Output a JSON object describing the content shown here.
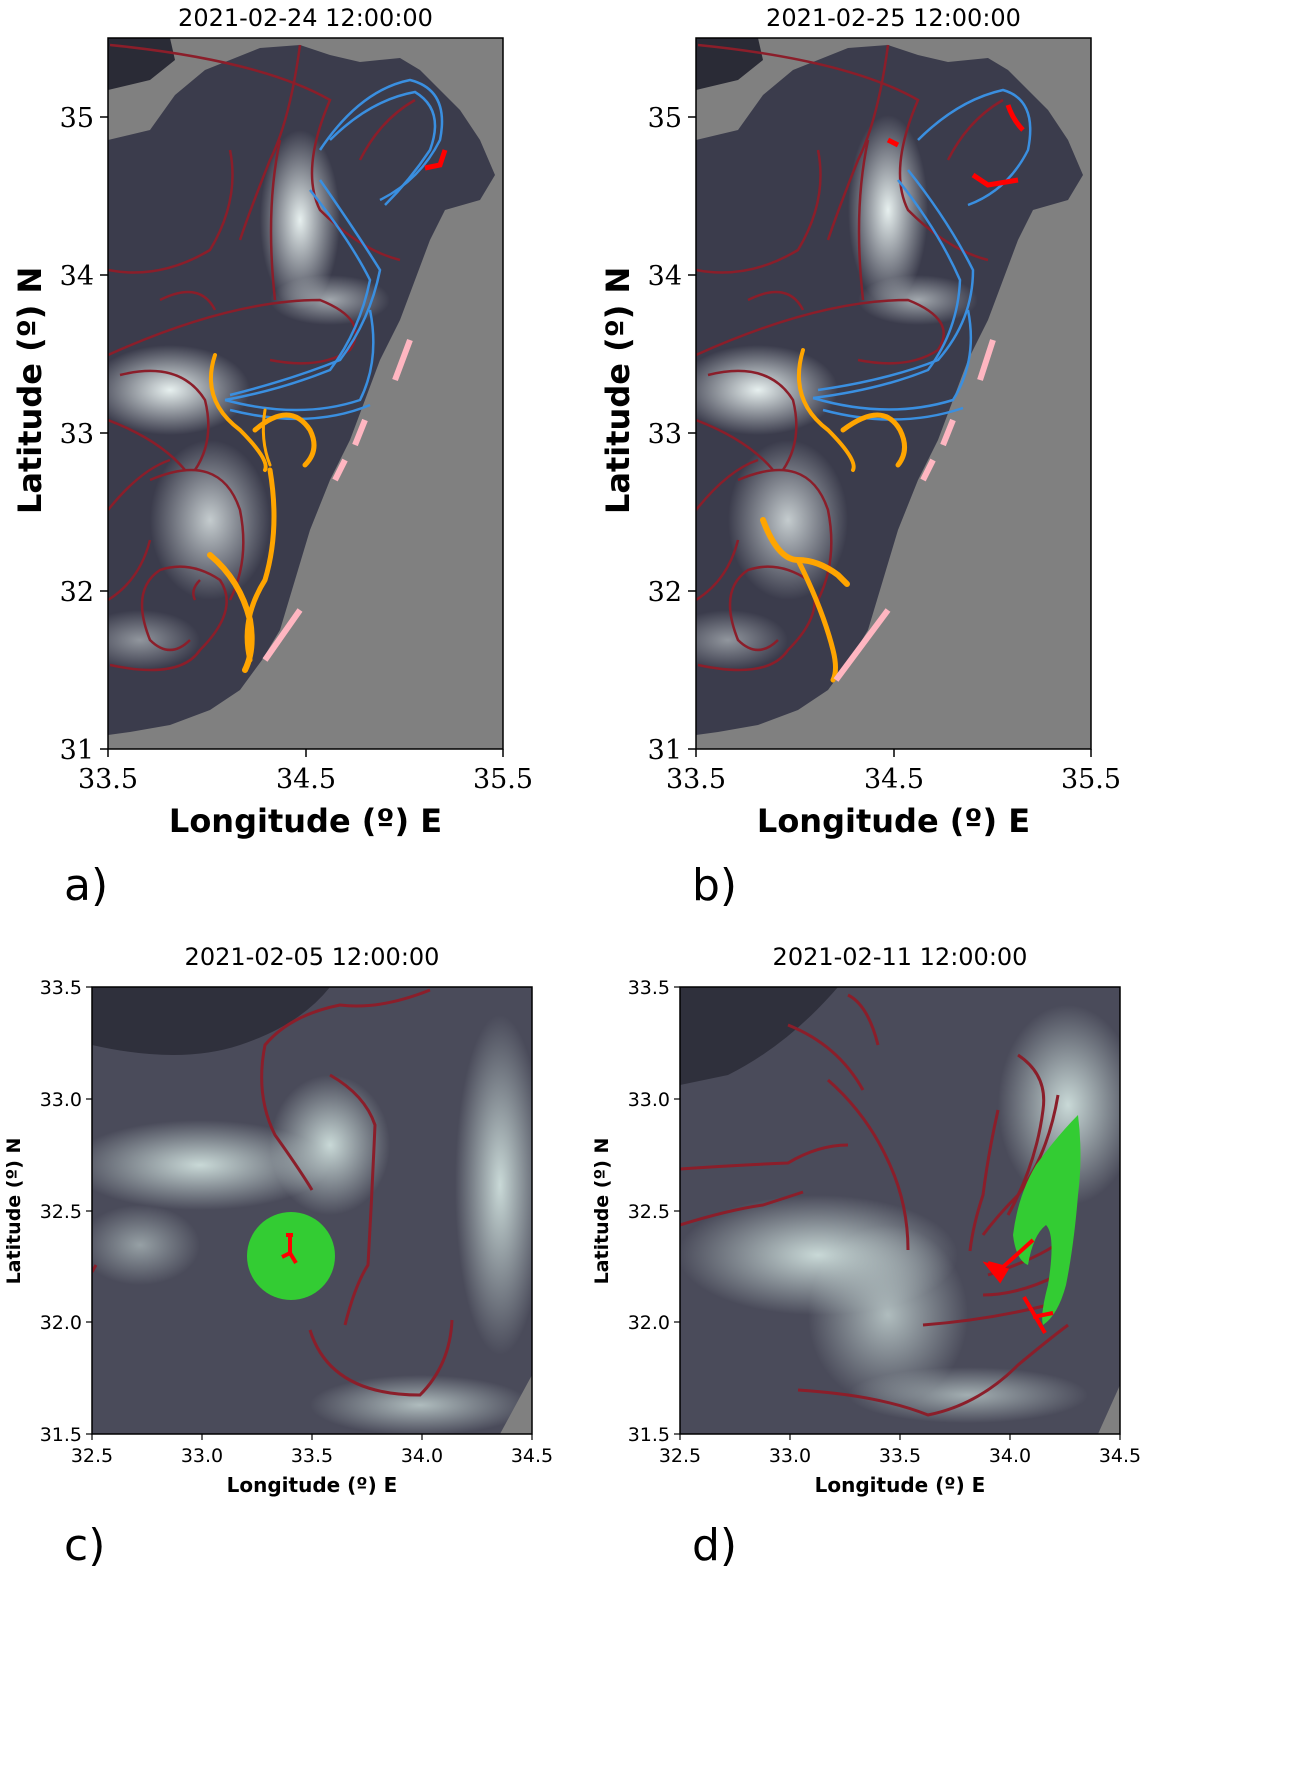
{
  "panels": [
    {
      "id": "a",
      "tag": "a)",
      "title": "2021-02-24 12:00:00",
      "xlabel": "Longitude (º) E",
      "ylabel": "Latitude (º) N",
      "xticks": [
        "33.5",
        "34.5",
        "35.5"
      ],
      "yticks": [
        "31",
        "32",
        "33",
        "34",
        "35"
      ]
    },
    {
      "id": "b",
      "tag": "b)",
      "title": "2021-02-25 12:00:00",
      "xlabel": "Longitude (º) E",
      "ylabel": "Latitude (º) N",
      "xticks": [
        "33.5",
        "34.5",
        "35.5"
      ],
      "yticks": [
        "31",
        "32",
        "33",
        "34",
        "35"
      ]
    },
    {
      "id": "c",
      "tag": "c)",
      "title": "2021-02-05 12:00:00",
      "xlabel": "Longitude (º) E",
      "ylabel": "Latitude (º) N",
      "xticks": [
        "32.5",
        "33.0",
        "33.5",
        "34.0",
        "34.5"
      ],
      "yticks": [
        "31.5",
        "32.0",
        "32.5",
        "33.0",
        "33.5"
      ]
    },
    {
      "id": "d",
      "tag": "d)",
      "title": "2021-02-11 12:00:00",
      "xlabel": "Longitude (º) E",
      "ylabel": "Latitude (º) N",
      "xticks": [
        "32.5",
        "33.0",
        "33.5",
        "34.0",
        "34.5"
      ],
      "yticks": [
        "31.5",
        "32.0",
        "32.5",
        "33.0",
        "33.5"
      ]
    }
  ],
  "colors": {
    "land": "#808080",
    "sea_dark": "#3b3c4c",
    "sea_light": "#dfeceb",
    "ridge_lines": "#8b1e2a",
    "blue_curves": "#3a8fe0",
    "orange_curves": "#ffa500",
    "pink_coast": "#ffb6c1",
    "red_particles": "#ff0000",
    "green_patch": "#33cc33"
  }
}
